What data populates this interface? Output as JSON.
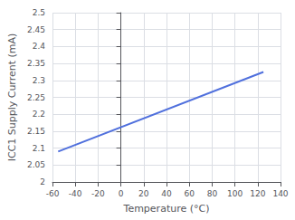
{
  "chart_data": {
    "type": "line",
    "xlabel": "Temperature (°C)",
    "ylabel": "ICC1 Supply Current (mA)",
    "x": [
      -55,
      125
    ],
    "values": [
      2.09,
      2.325
    ],
    "xlim": [
      -60,
      140
    ],
    "ylim": [
      2.0,
      2.5
    ],
    "xticks": [
      -60,
      -40,
      -20,
      0,
      20,
      40,
      60,
      80,
      100,
      120,
      140
    ],
    "yticks": [
      2.0,
      2.05,
      2.1,
      2.15,
      2.2,
      2.25,
      2.3,
      2.35,
      2.4,
      2.45,
      2.5
    ],
    "grid": true
  }
}
